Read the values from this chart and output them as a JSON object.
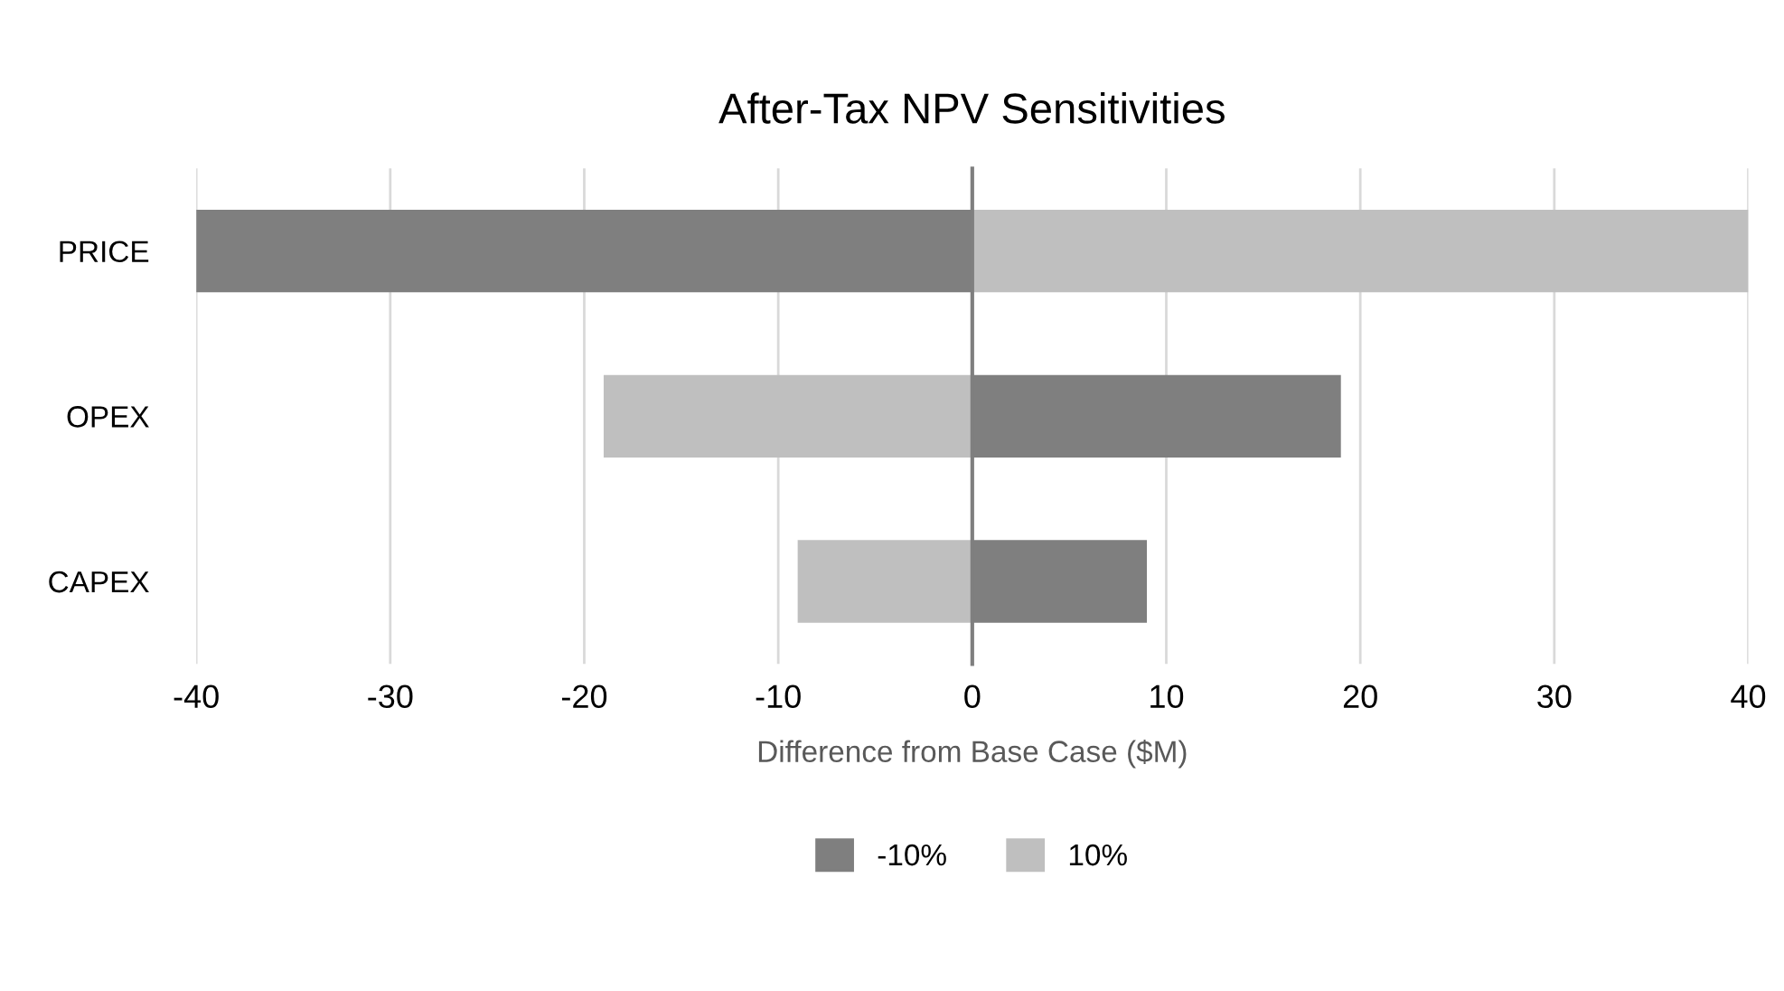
{
  "chart_data": {
    "type": "bar",
    "orientation": "horizontal",
    "title": "After-Tax NPV Sensitivities",
    "xlabel": "Difference from Base Case ($M)",
    "categories": [
      "PRICE",
      "OPEX",
      "CAPEX"
    ],
    "series": [
      {
        "name": "-10%",
        "color": "#7f7f7f",
        "values": [
          -40,
          19,
          9
        ]
      },
      {
        "name": "10%",
        "color": "#bfbfbf",
        "values": [
          40,
          -19,
          -9
        ]
      }
    ],
    "stacked": true,
    "xlim": [
      -40,
      40
    ],
    "xticks": [
      -40,
      -30,
      -20,
      -10,
      0,
      10,
      20,
      30,
      40
    ],
    "grid": "x",
    "legend": "bottom"
  }
}
